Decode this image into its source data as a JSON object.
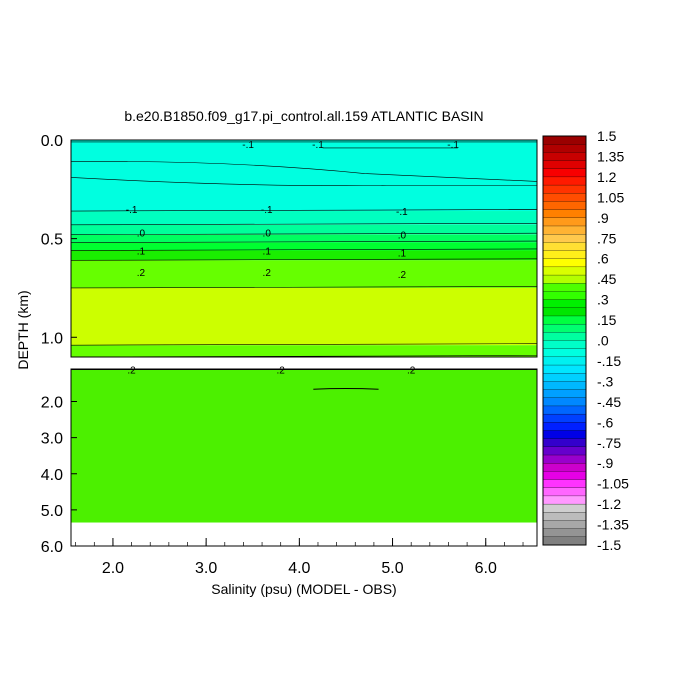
{
  "chart_data": {
    "type": "contour",
    "title": "b.e20.B1850.f09_g17.pi_control.all.159 ATLANTIC BASIN",
    "xlabel": "Salinity (psu) (MODEL - OBS)",
    "ylabel": "DEPTH (km)",
    "x_ticks": [
      "2.0",
      "3.0",
      "4.0",
      "5.0",
      "6.0"
    ],
    "x_tick_values": [
      2.0,
      3.0,
      4.0,
      5.0,
      6.0
    ],
    "xlim": [
      1.55,
      6.55
    ],
    "y_ticks_upper": [
      "0.0",
      "0.5",
      "1.0"
    ],
    "y_ticks_lower": [
      "2.0",
      "3.0",
      "4.0",
      "5.0",
      "6.0"
    ],
    "upper_panel_ylim": [
      0.0,
      1.1
    ],
    "lower_panel_ylim": [
      1.1,
      6.0
    ],
    "bands": [
      {
        "top": 0.0,
        "bottom": 0.36,
        "value": "-.2",
        "color": "#00ffe0"
      },
      {
        "top": 0.36,
        "bottom": 0.43,
        "value": "-.1",
        "color": "#00ffc0"
      },
      {
        "top": 0.43,
        "bottom": 0.48,
        "value": "-.05",
        "color": "#00ff9a"
      },
      {
        "top": 0.48,
        "bottom": 0.52,
        "value": ".0",
        "color": "#00ff60"
      },
      {
        "top": 0.52,
        "bottom": 0.56,
        "value": ".05",
        "color": "#00ff30"
      },
      {
        "top": 0.56,
        "bottom": 0.61,
        "value": ".1",
        "color": "#1aee00"
      },
      {
        "top": 0.61,
        "bottom": 0.75,
        "value": ".15",
        "color": "#66ff00"
      },
      {
        "top": 0.75,
        "bottom": 1.04,
        "value": ".3",
        "color": "#ccff00"
      },
      {
        "top": 1.04,
        "bottom": 1.1,
        "value": ".2",
        "color": "#66ff00"
      },
      {
        "top": 1.1,
        "bottom": 5.35,
        "value": ".2",
        "color": "#4cf000"
      }
    ],
    "contour_labels": [
      {
        "x": 3.45,
        "depth": 0.02,
        "text": "-.1"
      },
      {
        "x": 4.2,
        "depth": 0.02,
        "text": "-.1"
      },
      {
        "x": 5.65,
        "depth": 0.02,
        "text": "-.1"
      },
      {
        "x": 2.2,
        "depth": 0.35,
        "text": "-.1"
      },
      {
        "x": 3.65,
        "depth": 0.35,
        "text": "-.1"
      },
      {
        "x": 5.1,
        "depth": 0.36,
        "text": "-.1"
      },
      {
        "x": 2.3,
        "depth": 0.47,
        "text": ".0"
      },
      {
        "x": 3.65,
        "depth": 0.47,
        "text": ".0"
      },
      {
        "x": 5.1,
        "depth": 0.48,
        "text": ".0"
      },
      {
        "x": 2.3,
        "depth": 0.56,
        "text": ".1"
      },
      {
        "x": 3.65,
        "depth": 0.56,
        "text": ".1"
      },
      {
        "x": 5.1,
        "depth": 0.57,
        "text": ".1"
      },
      {
        "x": 2.3,
        "depth": 0.67,
        "text": ".2"
      },
      {
        "x": 3.65,
        "depth": 0.67,
        "text": ".2"
      },
      {
        "x": 5.1,
        "depth": 0.68,
        "text": ".2"
      },
      {
        "x": 2.2,
        "depth": 1.12,
        "text": ".2"
      },
      {
        "x": 3.8,
        "depth": 1.12,
        "text": ".2"
      },
      {
        "x": 5.2,
        "depth": 1.12,
        "text": ".2"
      }
    ],
    "colorbar": {
      "labels": [
        "1.5",
        "1.35",
        "1.2",
        "1.05",
        ".9",
        ".75",
        ".6",
        ".45",
        ".3",
        ".15",
        ".0",
        "-.15",
        "-.3",
        "-.45",
        "-.6",
        "-.75",
        "-.9",
        "-1.05",
        "-1.2",
        "-1.35",
        "-1.5"
      ],
      "colors": [
        "#9a0000",
        "#b00000",
        "#c80000",
        "#e00000",
        "#f80000",
        "#ff1a00",
        "#ff3300",
        "#ff4d00",
        "#ff6600",
        "#ff8000",
        "#ff9a1a",
        "#ffb333",
        "#ffc94d",
        "#ffdf33",
        "#ffef1a",
        "#ffff00",
        "#d9ff00",
        "#b3ff00",
        "#4dff00",
        "#33ff00",
        "#00f000",
        "#00e600",
        "#00ff40",
        "#00ff70",
        "#00ffa0",
        "#00ffc8",
        "#00ffe0",
        "#00f0f0",
        "#00e6ff",
        "#00d0ff",
        "#00b8ff",
        "#00a0ff",
        "#0088ff",
        "#0066ff",
        "#0040ff",
        "#0020ff",
        "#0000e6",
        "#3300cc",
        "#6600cc",
        "#9900cc",
        "#cc00cc",
        "#e600e6",
        "#ff33ff",
        "#ff66ff",
        "#ff99ff",
        "#cfcfcf",
        "#bcbcbc",
        "#a8a8a8",
        "#949494",
        "#808080"
      ]
    }
  }
}
